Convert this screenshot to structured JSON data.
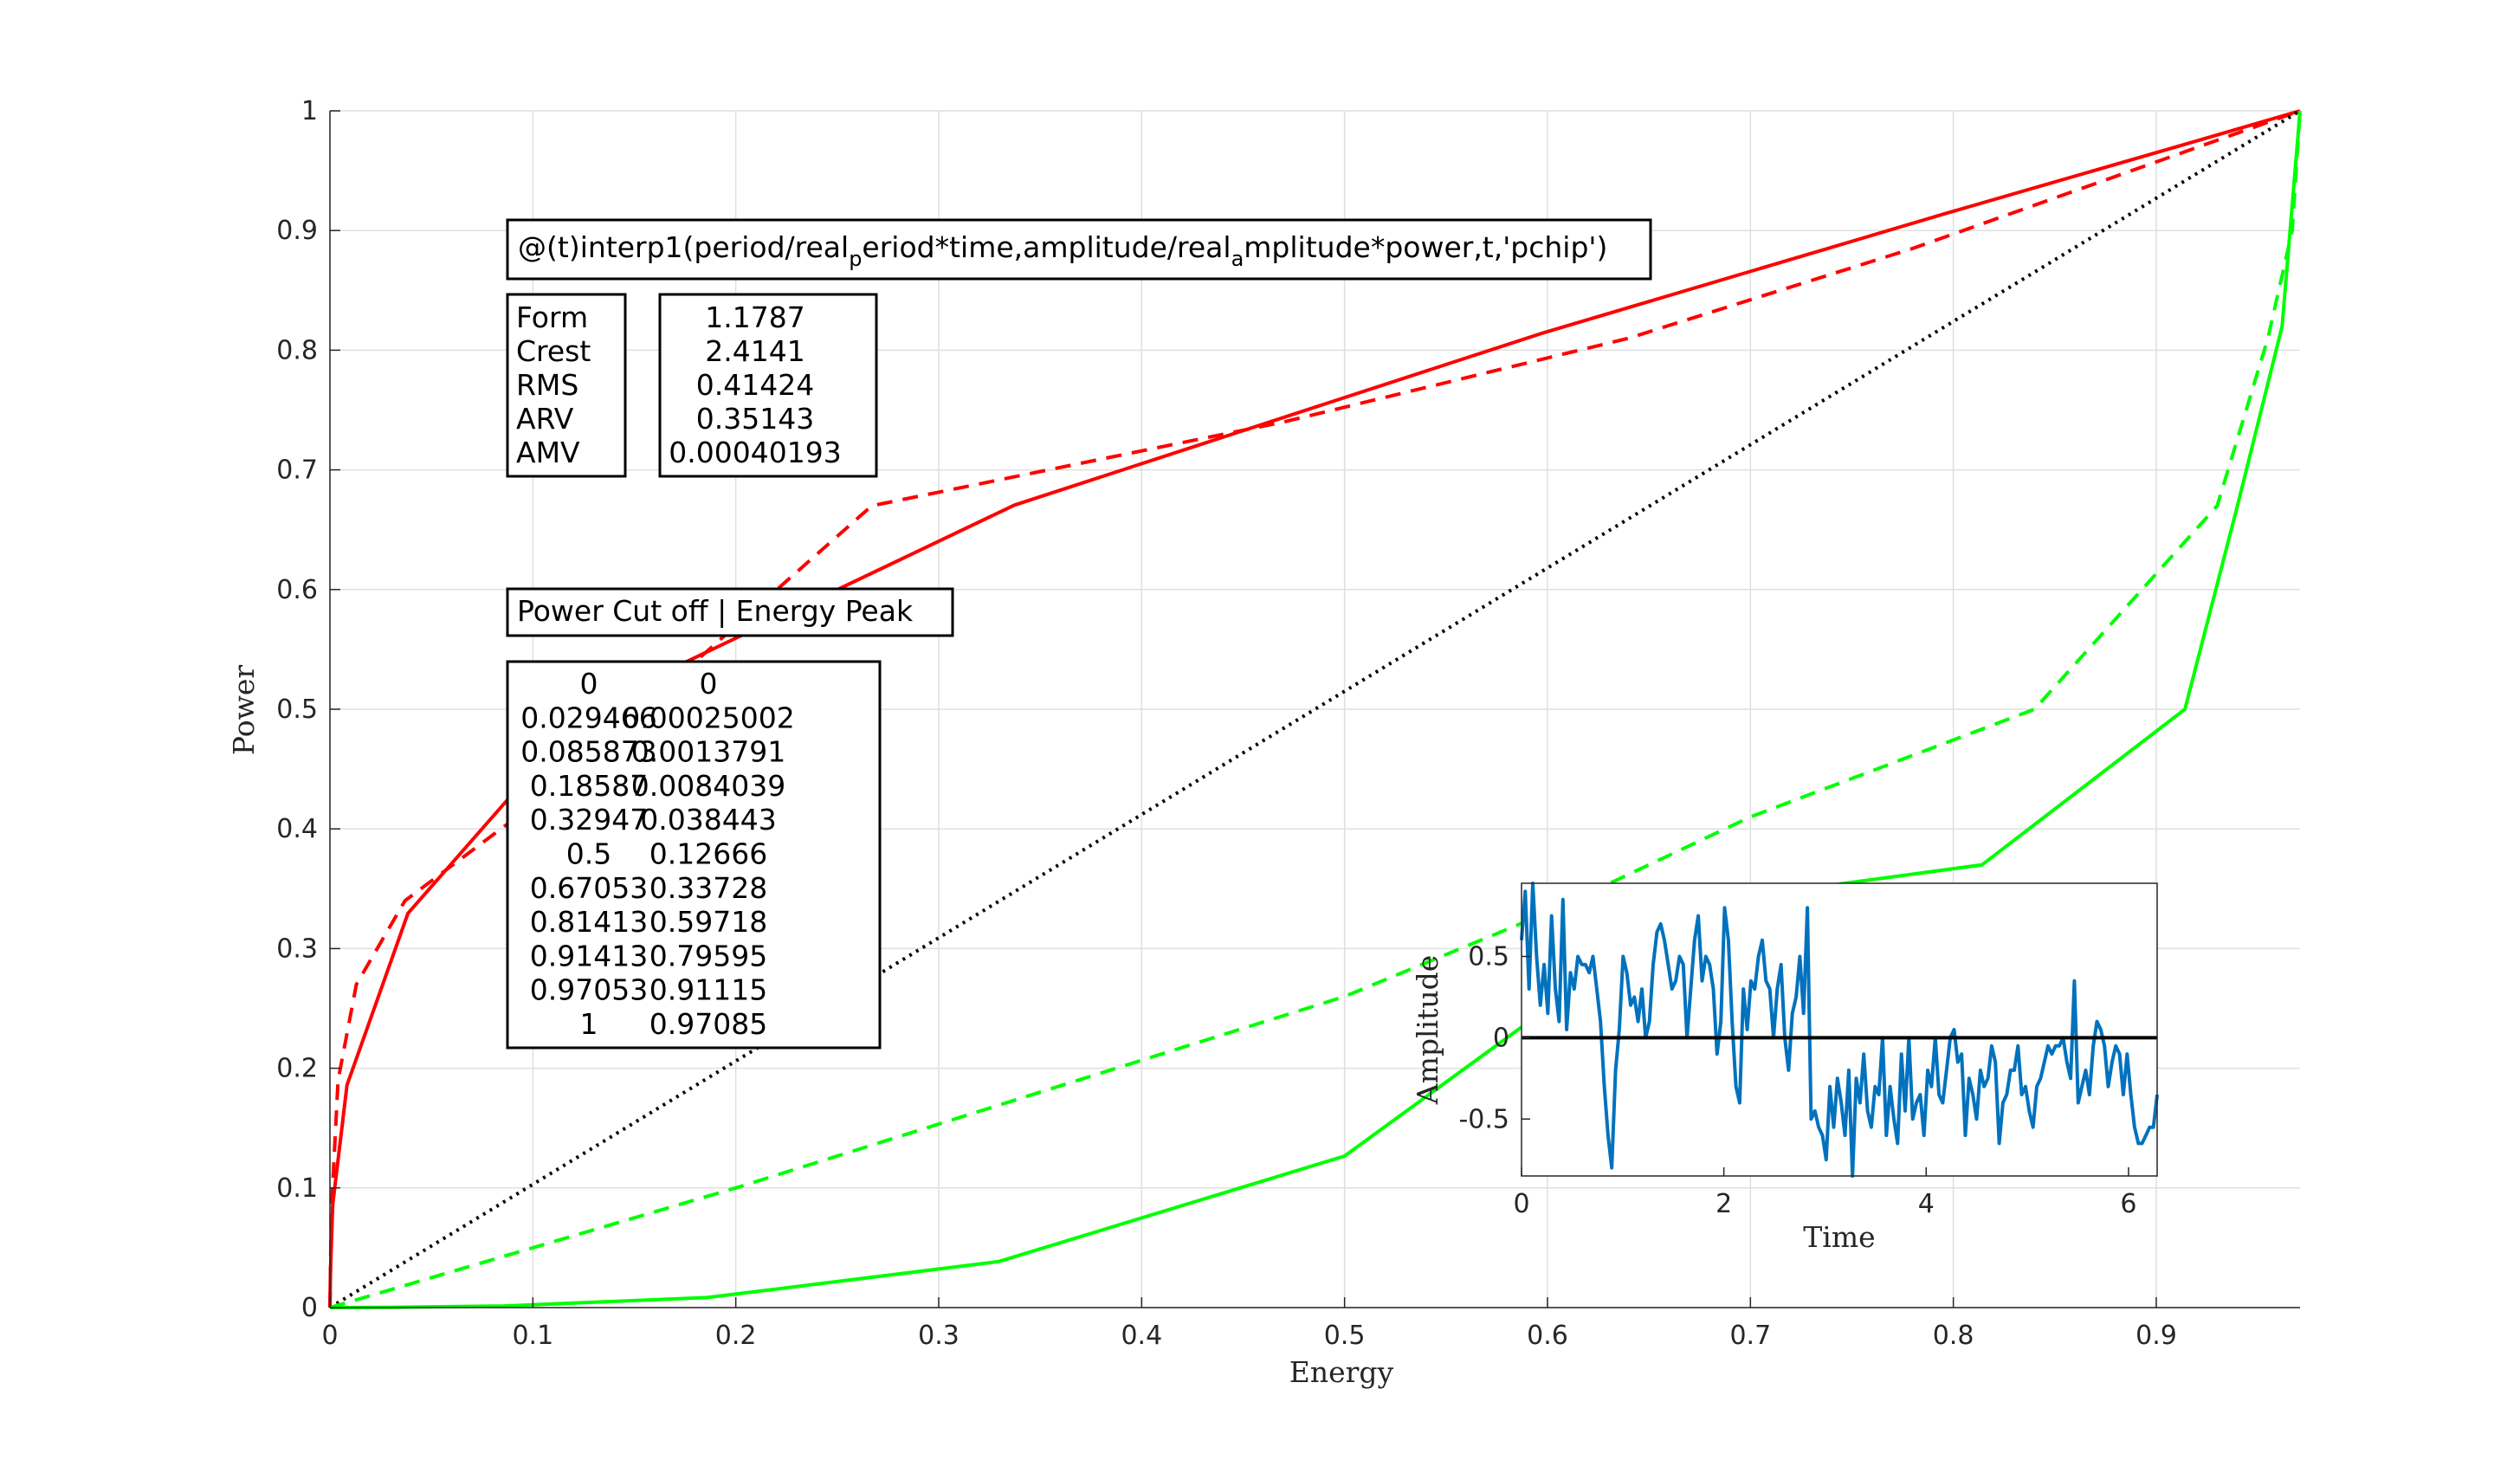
{
  "chart_data": {
    "main": {
      "type": "line",
      "xlabel": "Energy",
      "ylabel": "Power",
      "xlim": [
        0,
        0.97085
      ],
      "ylim": [
        0,
        1
      ],
      "xticks": [
        "0",
        "0.1",
        "0.2",
        "0.3",
        "0.4",
        "0.5",
        "0.6",
        "0.7",
        "0.8",
        "0.9"
      ],
      "yticks": [
        "0",
        "0.1",
        "0.2",
        "0.3",
        "0.4",
        "0.5",
        "0.6",
        "0.7",
        "0.8",
        "0.9",
        "1"
      ],
      "grid": true,
      "series": [
        {
          "style": "solid",
          "color": "#ff0000",
          "x": [
            0,
            0.00025002,
            0.0013791,
            0.0084039,
            0.038443,
            0.12666,
            0.33728,
            0.59718,
            0.79595,
            0.91115,
            0.97085
          ],
          "y": [
            0,
            0.029466,
            0.085873,
            0.18587,
            0.32947,
            0.5,
            0.67053,
            0.81413,
            0.91413,
            0.97053,
            1
          ]
        },
        {
          "style": "dashed",
          "color": "#ff0000",
          "x": [
            0,
            0.0007,
            0.004,
            0.013,
            0.037,
            0.1,
            0.267,
            0.47,
            0.64,
            0.78,
            0.97085
          ],
          "y": [
            0,
            0.08,
            0.19,
            0.27,
            0.34,
            0.42,
            0.67,
            0.74,
            0.81,
            0.885,
            1
          ]
        },
        {
          "style": "dotted",
          "color": "#000000",
          "x": [
            0,
            0.97085
          ],
          "y": [
            0,
            1
          ]
        },
        {
          "style": "dashed",
          "color": "#00ff00",
          "x": [
            0,
            0.1,
            0.2,
            0.35,
            0.5,
            0.6,
            0.7,
            0.84,
            0.93,
            0.955,
            0.967,
            0.97085
          ],
          "y": [
            0,
            0.05,
            0.1,
            0.18,
            0.26,
            0.33,
            0.41,
            0.5,
            0.67,
            0.81,
            0.9,
            1
          ]
        },
        {
          "style": "solid",
          "color": "#00ff00",
          "x": [
            0,
            0.029466,
            0.085873,
            0.18587,
            0.32947,
            0.5,
            0.67053,
            0.81413,
            0.91413,
            0.94,
            0.962,
            0.97085
          ],
          "y": [
            0,
            0.00025002,
            0.0013791,
            0.0084039,
            0.038443,
            0.12666,
            0.33728,
            0.37,
            0.5,
            0.67,
            0.82,
            1
          ]
        }
      ]
    },
    "inset": {
      "type": "line",
      "xlabel": "Time",
      "ylabel": "Amplitude",
      "xlim": [
        0,
        6.2832
      ],
      "ylim": [
        -0.85,
        0.95
      ],
      "xticks": [
        "0",
        "2",
        "4",
        "6"
      ],
      "yticks": [
        "0.5",
        "0",
        "-0.5"
      ],
      "series": [
        {
          "color": "#0072bd",
          "style": "solid",
          "y": [
            0.6,
            0.9,
            0.3,
            0.95,
            0.5,
            0.2,
            0.45,
            0.15,
            0.75,
            0.3,
            0.1,
            0.85,
            0.05,
            0.4,
            0.3,
            0.5,
            0.45,
            0.45,
            0.4,
            0.5,
            0.3,
            0.1,
            -0.3,
            -0.6,
            -0.8,
            -0.2,
            0.05,
            0.5,
            0.4,
            0.2,
            0.25,
            0.1,
            0.3,
            0.0,
            0.1,
            0.45,
            0.65,
            0.7,
            0.6,
            0.45,
            0.3,
            0.35,
            0.5,
            0.45,
            0.0,
            0.3,
            0.6,
            0.75,
            0.35,
            0.5,
            0.45,
            0.3,
            -0.1,
            0.1,
            0.8,
            0.6,
            0.1,
            -0.3,
            -0.4,
            0.3,
            0.05,
            0.35,
            0.3,
            0.5,
            0.6,
            0.35,
            0.3,
            0.0,
            0.3,
            0.45,
            0.0,
            -0.2,
            0.15,
            0.25,
            0.5,
            0.15,
            0.8,
            -0.5,
            -0.45,
            -0.55,
            -0.6,
            -0.75,
            -0.3,
            -0.55,
            -0.25,
            -0.4,
            -0.6,
            -0.2,
            -0.85,
            -0.25,
            -0.4,
            -0.1,
            -0.45,
            -0.55,
            -0.3,
            -0.35,
            0.0,
            -0.6,
            -0.3,
            -0.5,
            -0.65,
            -0.1,
            -0.45,
            0.0,
            -0.5,
            -0.4,
            -0.35,
            -0.6,
            -0.2,
            -0.3,
            0.0,
            -0.35,
            -0.4,
            -0.2,
            0.0,
            0.05,
            -0.15,
            -0.1,
            -0.6,
            -0.25,
            -0.35,
            -0.5,
            -0.2,
            -0.3,
            -0.25,
            -0.05,
            -0.15,
            -0.65,
            -0.4,
            -0.35,
            -0.2,
            -0.2,
            -0.05,
            -0.35,
            -0.3,
            -0.45,
            -0.55,
            -0.3,
            -0.25,
            -0.15,
            -0.05,
            -0.1,
            -0.05,
            -0.05,
            0.0,
            -0.15,
            -0.25,
            0.35,
            -0.4,
            -0.3,
            -0.2,
            -0.35,
            -0.05,
            0.1,
            0.05,
            -0.05,
            -0.3,
            -0.15,
            -0.05,
            -0.1,
            -0.35,
            -0.1,
            -0.35,
            -0.55,
            -0.65,
            -0.65,
            -0.6,
            -0.55,
            -0.55,
            -0.35
          ]
        }
      ],
      "baseline": 0
    },
    "formula": "@(t)interp1(period/real_period*time,amplitude/real_amplitude*power,t,'pchip')",
    "formula_parts": [
      "@(t)interp1(period/real",
      "p",
      "eriod*time,amplitude/real",
      "a",
      "mplitude*power,t,'pchip')"
    ],
    "stats_labels": [
      "Form",
      "Crest",
      "RMS",
      "ARV",
      "AMV"
    ],
    "stats_values": [
      "1.1787",
      "2.4141",
      "0.41424",
      "0.35143",
      "0.00040193"
    ],
    "cutoff_title": "Power Cut off | Energy Peak",
    "cutoff_table": [
      [
        "0",
        "0"
      ],
      [
        "0.029466",
        "0.00025002"
      ],
      [
        "0.085873",
        "0.0013791"
      ],
      [
        "0.18587",
        "0.0084039"
      ],
      [
        "0.32947",
        "0.038443"
      ],
      [
        "0.5",
        "0.12666"
      ],
      [
        "0.67053",
        "0.33728"
      ],
      [
        "0.81413",
        "0.59718"
      ],
      [
        "0.91413",
        "0.79595"
      ],
      [
        "0.97053",
        "0.91115"
      ],
      [
        "1",
        "0.97085"
      ]
    ]
  }
}
